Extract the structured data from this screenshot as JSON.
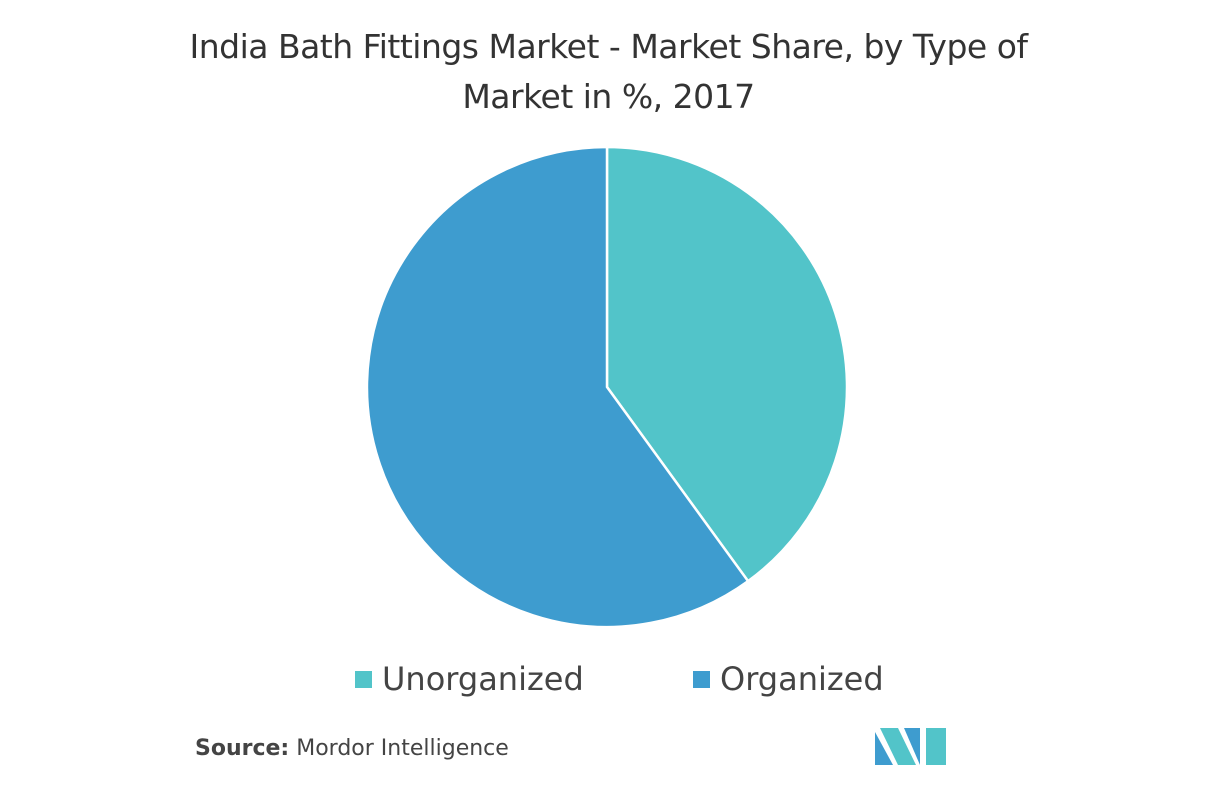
{
  "chart_data": {
    "type": "pie",
    "title": "India Bath Fittings Market - Market Share, by Type of Market in %, 2017",
    "categories": [
      "Unorganized",
      "Organized"
    ],
    "values": [
      40,
      60
    ],
    "colors": [
      "#52c4c9",
      "#3e9ccf"
    ],
    "source": {
      "label": "Source:",
      "text": "Mordor Intelligence"
    }
  }
}
